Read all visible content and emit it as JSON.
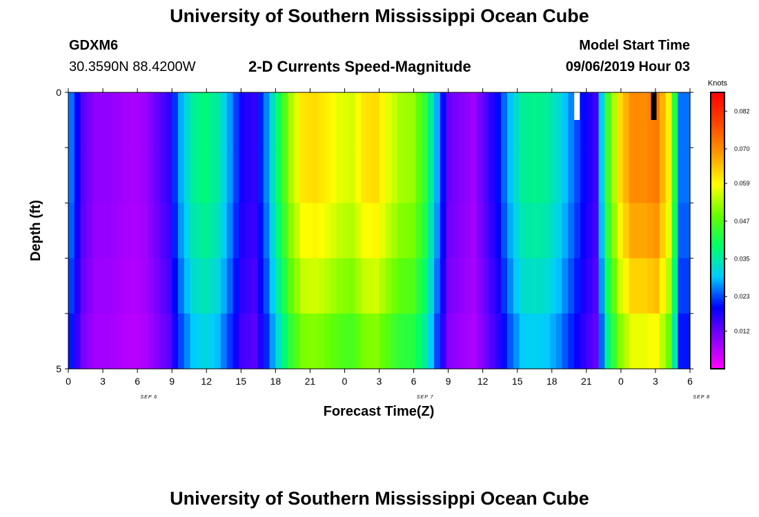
{
  "header": {
    "title": "University of Southern Mississippi Ocean Cube",
    "station_id": "GDXM6",
    "station_coords": "30.3590N 88.4200W",
    "chart_heading": "2-D Currents Speed-Magnitude",
    "model_start_label": "Model Start Time",
    "model_start_value": "09/06/2019 Hour 03"
  },
  "footer": {
    "title": "University of Southern Mississippi Ocean Cube"
  },
  "chart_data": {
    "type": "heatmap",
    "title": "2-D Currents Speed-Magnitude",
    "xlabel": "Forecast Time(Z)",
    "ylabel": "Depth (ft)",
    "yticks": [
      "0",
      "5"
    ],
    "ylim": [
      0,
      5
    ],
    "xticks": [
      "0",
      "3",
      "6",
      "9",
      "12",
      "15",
      "18",
      "21",
      "0",
      "3",
      "6",
      "9",
      "12",
      "15",
      "18",
      "21",
      "0",
      "3",
      "6"
    ],
    "date_labels": [
      "SEP 6",
      "SEP 7",
      "SEP 8"
    ],
    "colorbar": {
      "label": "Knots",
      "ticks": [
        "0.082",
        "0.070",
        "0.059",
        "0.047",
        "0.035",
        "0.023",
        "0.012"
      ],
      "tick_values": [
        0.082,
        0.07,
        0.059,
        0.047,
        0.035,
        0.023,
        0.012
      ],
      "range": [
        0.0,
        0.088
      ],
      "stops": [
        "#ff00ff",
        "#8800ff",
        "#0000ff",
        "#00ccff",
        "#00ff66",
        "#66ff00",
        "#ffff00",
        "#ff9900",
        "#ff4400",
        "#ff0000"
      ]
    },
    "hours_total": 51,
    "column_speeds": [
      0.025,
      0.013,
      0.009,
      0.009,
      0.008,
      0.007,
      0.008,
      0.012,
      0.016,
      0.028,
      0.036,
      0.038,
      0.035,
      0.027,
      0.018,
      0.016,
      0.026,
      0.04,
      0.053,
      0.061,
      0.062,
      0.06,
      0.057,
      0.056,
      0.061,
      0.062,
      0.057,
      0.053,
      0.052,
      0.044,
      0.028,
      0.012,
      0.01,
      0.008,
      0.014,
      0.02,
      0.029,
      0.036,
      0.037,
      0.036,
      0.032,
      0.026,
      0.02,
      0.015,
      0.045,
      0.062,
      0.07,
      0.07,
      0.072,
      0.06,
      0.025
    ],
    "depth_factors": [
      1.0,
      1.0,
      0.96,
      0.9,
      0.82
    ],
    "missing_cells": [
      {
        "hour": 41.5,
        "depth_row": 0,
        "kind": "white"
      },
      {
        "hour": 47.8,
        "depth_row": 0,
        "kind": "black"
      }
    ]
  }
}
